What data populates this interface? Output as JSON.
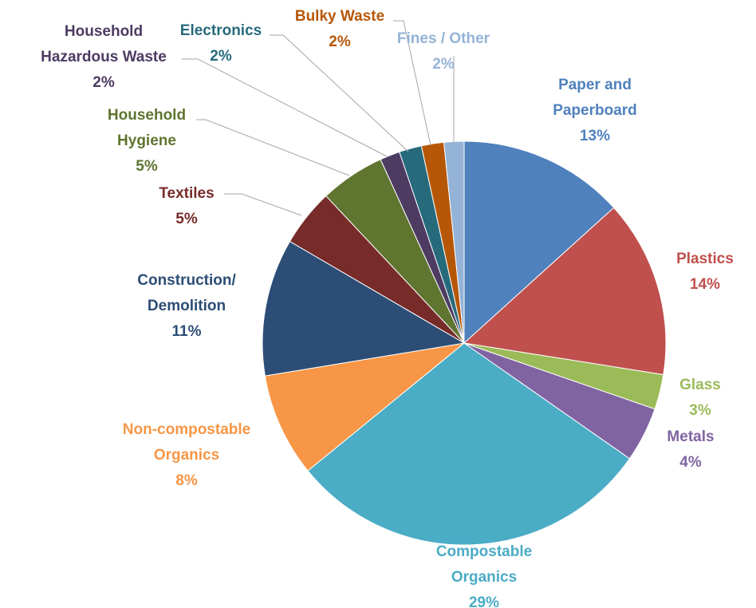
{
  "chart_data": {
    "type": "pie",
    "title": "",
    "start_angle_deg": 0,
    "direction": "clockwise",
    "slices": [
      {
        "label": [
          "Paper and",
          "Paperboard"
        ],
        "percent_label": "13%",
        "value": 13.3,
        "color": "#4f81bd",
        "text_color": "#4f81bd"
      },
      {
        "label": [
          "Plastics"
        ],
        "percent_label": "14%",
        "value": 14.2,
        "color": "#c0504d",
        "text_color": "#c0504d"
      },
      {
        "label": [
          "Glass"
        ],
        "percent_label": "3%",
        "value": 2.8,
        "color": "#9bbb59",
        "text_color": "#9bbb59"
      },
      {
        "label": [
          "Metals"
        ],
        "percent_label": "4%",
        "value": 4.4,
        "color": "#8064a2",
        "text_color": "#8064a2"
      },
      {
        "label": [
          "Compostable",
          "Organics"
        ],
        "percent_label": "29%",
        "value": 29.4,
        "color": "#4bacc6",
        "text_color": "#4bacc6"
      },
      {
        "label": [
          "Non-compostable",
          "Organics"
        ],
        "percent_label": "8%",
        "value": 8.3,
        "color": "#f79646",
        "text_color": "#f79646"
      },
      {
        "label": [
          "Construction/",
          "Demolition"
        ],
        "percent_label": "11%",
        "value": 11.0,
        "color": "#2c4d75",
        "text_color": "#2c4d75"
      },
      {
        "label": [
          "Textiles"
        ],
        "percent_label": "5%",
        "value": 4.6,
        "color": "#772c2a",
        "text_color": "#772c2a"
      },
      {
        "label": [
          "Household",
          "Hygiene"
        ],
        "percent_label": "5%",
        "value": 5.2,
        "color": "#5f7530",
        "text_color": "#5f7530"
      },
      {
        "label": [
          "Household",
          "Hazardous Waste"
        ],
        "percent_label": "2%",
        "value": 1.6,
        "color": "#4d3b62",
        "text_color": "#4d3b62"
      },
      {
        "label": [
          "Electronics"
        ],
        "percent_label": "2%",
        "value": 1.8,
        "color": "#276a7c",
        "text_color": "#276a7c"
      },
      {
        "label": [
          "Bulky Waste"
        ],
        "percent_label": "2%",
        "value": 1.8,
        "color": "#b65708",
        "text_color": "#b65708"
      },
      {
        "label": [
          "Fines / Other"
        ],
        "percent_label": "2%",
        "value": 1.6,
        "color": "#95b3d7",
        "text_color": "#95b3d7"
      }
    ]
  }
}
